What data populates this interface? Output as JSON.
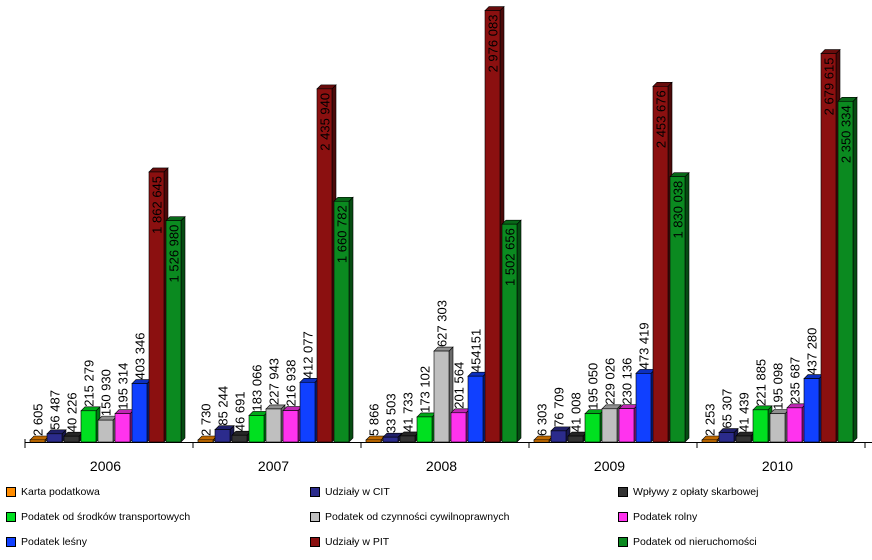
{
  "chart_data": {
    "type": "bar",
    "categories": [
      "2006",
      "2007",
      "2008",
      "2009",
      "2010"
    ],
    "ylim": [
      0,
      3000000
    ],
    "grid": false,
    "legend_position": "bottom",
    "series": [
      {
        "name": "Karta podatkowa",
        "color": "#ff8c00",
        "values": [
          2605,
          2730,
          5866,
          6303,
          2253
        ],
        "labels": [
          "2 605",
          "2 730",
          "5 866",
          "6 303",
          "2 253"
        ]
      },
      {
        "name": "Udziały w CIT",
        "color": "#2b2b8c",
        "values": [
          56487,
          85244,
          33503,
          76709,
          65307
        ],
        "labels": [
          "56 487",
          "85 244",
          "33 503",
          "76 709",
          "65 307"
        ]
      },
      {
        "name": "Wpływy z opłaty skarbowej",
        "color": "#333333",
        "values": [
          40226,
          46691,
          41733,
          41008,
          41439
        ],
        "labels": [
          "40 226",
          "46 691",
          "41 733",
          "41 008",
          "41 439"
        ]
      },
      {
        "name": "Podatek od środków transportowych",
        "color": "#00e020",
        "values": [
          215279,
          183066,
          173102,
          195050,
          221885
        ],
        "labels": [
          "215 279",
          "183 066",
          "173 102",
          "195 050",
          "221 885"
        ]
      },
      {
        "name": "Podatek od czynności cywilnoprawnych",
        "color": "#bfbfbf",
        "values": [
          150930,
          227943,
          627303,
          229026,
          195098
        ],
        "labels": [
          "150 930",
          "227 943",
          "627 303",
          "229 026",
          "195 098"
        ]
      },
      {
        "name": "Podatek rolny",
        "color": "#ff33ee",
        "values": [
          195314,
          216938,
          201564,
          230136,
          235687
        ],
        "labels": [
          "195 314",
          "216 938",
          "201 564",
          "230 136",
          "235 687"
        ]
      },
      {
        "name": "Podatek leśny",
        "color": "#1040ff",
        "values": [
          403346,
          412077,
          454151,
          473419,
          437280
        ],
        "labels": [
          "403 346",
          "412 077",
          "454151",
          "473 419",
          "437 280"
        ]
      },
      {
        "name": "Udziały w PIT",
        "color": "#8b1010",
        "values": [
          1862645,
          2435940,
          2976083,
          2453676,
          2679615
        ],
        "labels": [
          "1 862 645",
          "2 435 940",
          "2 976 083",
          "2 453 676",
          "2 679 615"
        ]
      },
      {
        "name": "Podatek od nieruchomości",
        "color": "#0b8a20",
        "values": [
          1526980,
          1660782,
          1502656,
          1830038,
          2350334
        ],
        "labels": [
          "1 526 980",
          "1 660 782",
          "1 502 656",
          "1 830 038",
          "2 350 334"
        ]
      }
    ]
  }
}
